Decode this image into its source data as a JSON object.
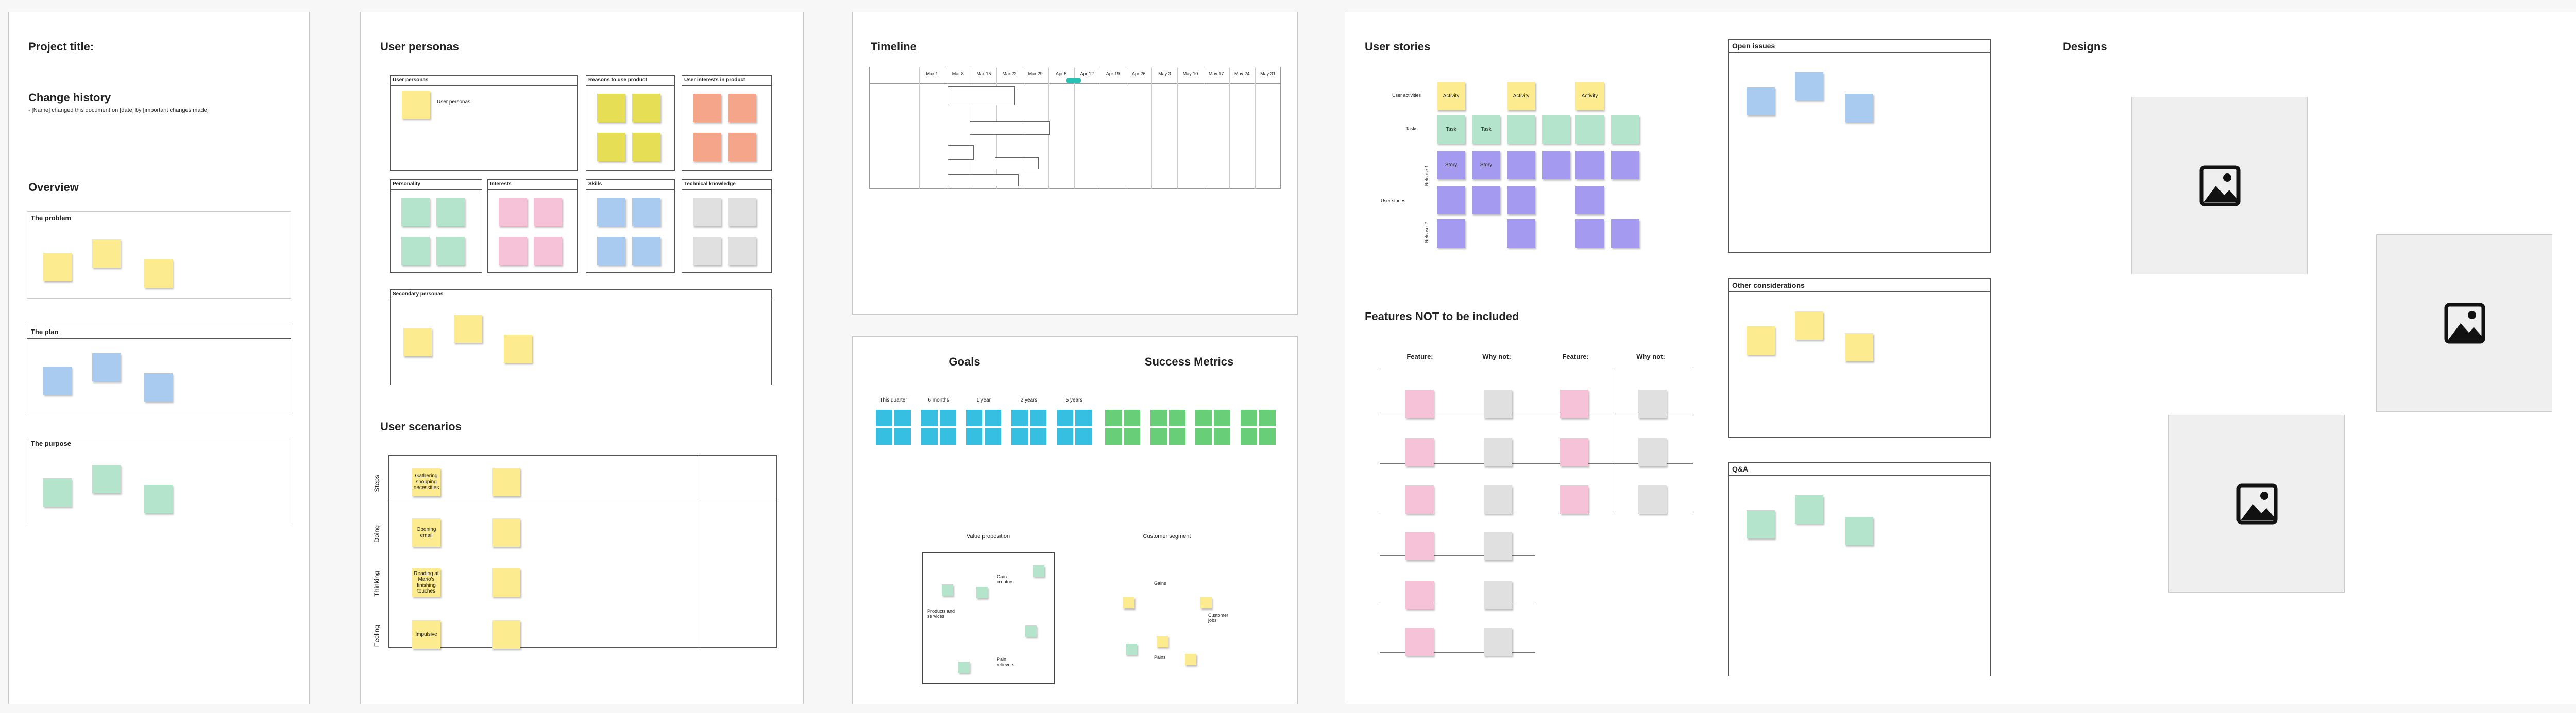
{
  "project": {
    "title": "Project title:",
    "change_history": "Change history",
    "change_note": "- [Name] changed this document on [date] by [important changes made]",
    "overview": "Overview",
    "sections": [
      "The problem",
      "The plan",
      "The purpose"
    ]
  },
  "personas": {
    "title": "User personas",
    "boxes": [
      "User personas",
      "Reasons to use product",
      "User interests in product",
      "Personality",
      "Interests",
      "Skills",
      "Technical knowledge"
    ],
    "note": "User personas",
    "secondary": "Secondary personas"
  },
  "scenarios": {
    "title": "User scenarios",
    "rows": [
      "Steps",
      "Doing",
      "Thinking",
      "Feeling"
    ],
    "notes": [
      "Gathering shopping necessities",
      "Opening email",
      "Reading at Mario's finishing touches",
      "Impulsive"
    ]
  },
  "timeline": {
    "title": "Timeline",
    "columns": [
      "Mar 1",
      "Mar 8",
      "Mar 15",
      "Mar 22",
      "Mar 29",
      "Apr 5",
      "Apr 12",
      "Apr 19",
      "Apr 26",
      "May 3",
      "May 10",
      "May 17",
      "May 24",
      "May 31"
    ]
  },
  "goals": {
    "title": "Goals",
    "horizons": [
      "This quarter",
      "6 months",
      "1 year",
      "2 years",
      "5 years"
    ],
    "metrics_title": "Success Metrics"
  },
  "canvas": {
    "value_proposition": "Value proposition",
    "customer_segment": "Customer segment",
    "gain_creators": "Gain creators",
    "products": "Products and services",
    "pain_relievers": "Pain relievers",
    "gains": "Gains",
    "customer_jobs": "Customer jobs",
    "pains": "Pains"
  },
  "story_map": {
    "title": "User stories",
    "rows": [
      "User activities",
      "Tasks",
      "User stories"
    ],
    "releases": [
      "Release 1",
      "Release 2"
    ],
    "activity": "Activity",
    "task": "Task",
    "story": "Story"
  },
  "features": {
    "title": "Features NOT to be included",
    "headers": [
      "Feature:",
      "Why not:",
      "Feature:",
      "Why not:"
    ]
  },
  "boxes": [
    "Open issues",
    "Other considerations",
    "Q&A"
  ],
  "designs": {
    "title": "Designs"
  }
}
